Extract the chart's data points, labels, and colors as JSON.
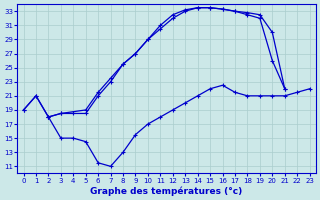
{
  "xlabel": "Graphe des températures (°c)",
  "bg_color": "#cce8e8",
  "line_color": "#0000cc",
  "grid_color": "#aacece",
  "xlim_min": -0.5,
  "xlim_max": 23.5,
  "ylim_min": 10,
  "ylim_max": 34,
  "xticks": [
    0,
    1,
    2,
    3,
    4,
    5,
    6,
    7,
    8,
    9,
    10,
    11,
    12,
    13,
    14,
    15,
    16,
    17,
    18,
    19,
    20,
    21,
    22,
    23
  ],
  "yticks": [
    11,
    13,
    15,
    17,
    19,
    21,
    23,
    25,
    27,
    29,
    31,
    33
  ],
  "curve_top_x": [
    0,
    1,
    2,
    3,
    4,
    5,
    6,
    7,
    8,
    9,
    10,
    11,
    12,
    13,
    14,
    15,
    16,
    17,
    18,
    19,
    20,
    21
  ],
  "curve_top_y": [
    19,
    21,
    18,
    18.5,
    18.5,
    18.5,
    21,
    23,
    25.5,
    27,
    29,
    31,
    32.5,
    33.2,
    33.5,
    33.5,
    33.3,
    33.0,
    32.5,
    32.0,
    26,
    22
  ],
  "curve_mid_x": [
    0,
    1,
    2,
    3,
    5,
    6,
    7,
    8,
    9,
    10,
    11,
    12,
    13,
    14,
    15,
    16,
    17,
    18,
    19,
    20,
    21
  ],
  "curve_mid_y": [
    19,
    21,
    18,
    18.5,
    19,
    21.5,
    23.5,
    25.5,
    27,
    29,
    30.5,
    32,
    33,
    33.5,
    33.5,
    33.3,
    33.0,
    32.8,
    32.5,
    30,
    22
  ],
  "curve_dip_x": [
    2,
    3,
    4,
    5,
    6,
    7,
    8,
    9,
    10,
    11,
    12,
    13,
    14,
    15,
    16,
    17,
    18,
    19,
    20,
    21,
    22,
    23
  ],
  "curve_dip_y": [
    18,
    15,
    15,
    14.5,
    11.5,
    11,
    13,
    15.5,
    17,
    18,
    19,
    20,
    21,
    22,
    22.5,
    21.5,
    21,
    21,
    21,
    21,
    21.5,
    22
  ],
  "xlabel_fontsize": 6.5,
  "tick_fontsize": 5.0
}
